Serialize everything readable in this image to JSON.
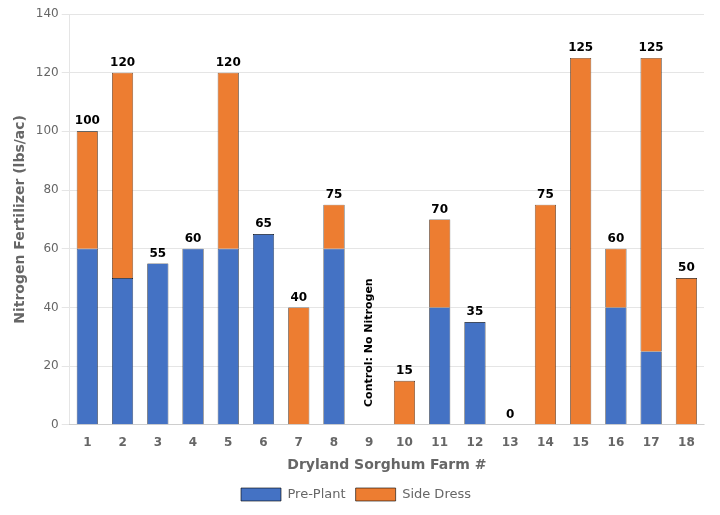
{
  "chart_data": {
    "type": "bar",
    "stacked": true,
    "xlabel": "Dryland Sorghum Farm #",
    "ylabel": "Nitrogen Fertilizer (lbs/ac)",
    "categories": [
      "1",
      "2",
      "3",
      "4",
      "5",
      "6",
      "7",
      "8",
      "9",
      "10",
      "11",
      "12",
      "13",
      "14",
      "15",
      "16",
      "17",
      "18"
    ],
    "series": [
      {
        "name": "Pre-Plant",
        "color": "#4472C4",
        "values": [
          60,
          50,
          55,
          60,
          60,
          65,
          0,
          60,
          0,
          0,
          40,
          35,
          0,
          0,
          0,
          40,
          25,
          0
        ]
      },
      {
        "name": "Side Dress",
        "color": "#ED7D31",
        "values": [
          40,
          70,
          0,
          0,
          60,
          0,
          40,
          15,
          0,
          15,
          30,
          0,
          0,
          75,
          125,
          20,
          100,
          50
        ]
      }
    ],
    "total_labels": [
      100,
      120,
      55,
      60,
      120,
      65,
      40,
      75,
      null,
      15,
      70,
      35,
      0,
      75,
      125,
      60,
      125,
      50
    ],
    "annotations": [
      {
        "text": "Control: No Nitrogen",
        "category": "9",
        "y": 28
      }
    ],
    "ylim": [
      0,
      140
    ],
    "yticks": [
      0,
      20,
      40,
      60,
      80,
      100,
      120,
      140
    ],
    "grid": true,
    "legend": "bottom"
  }
}
